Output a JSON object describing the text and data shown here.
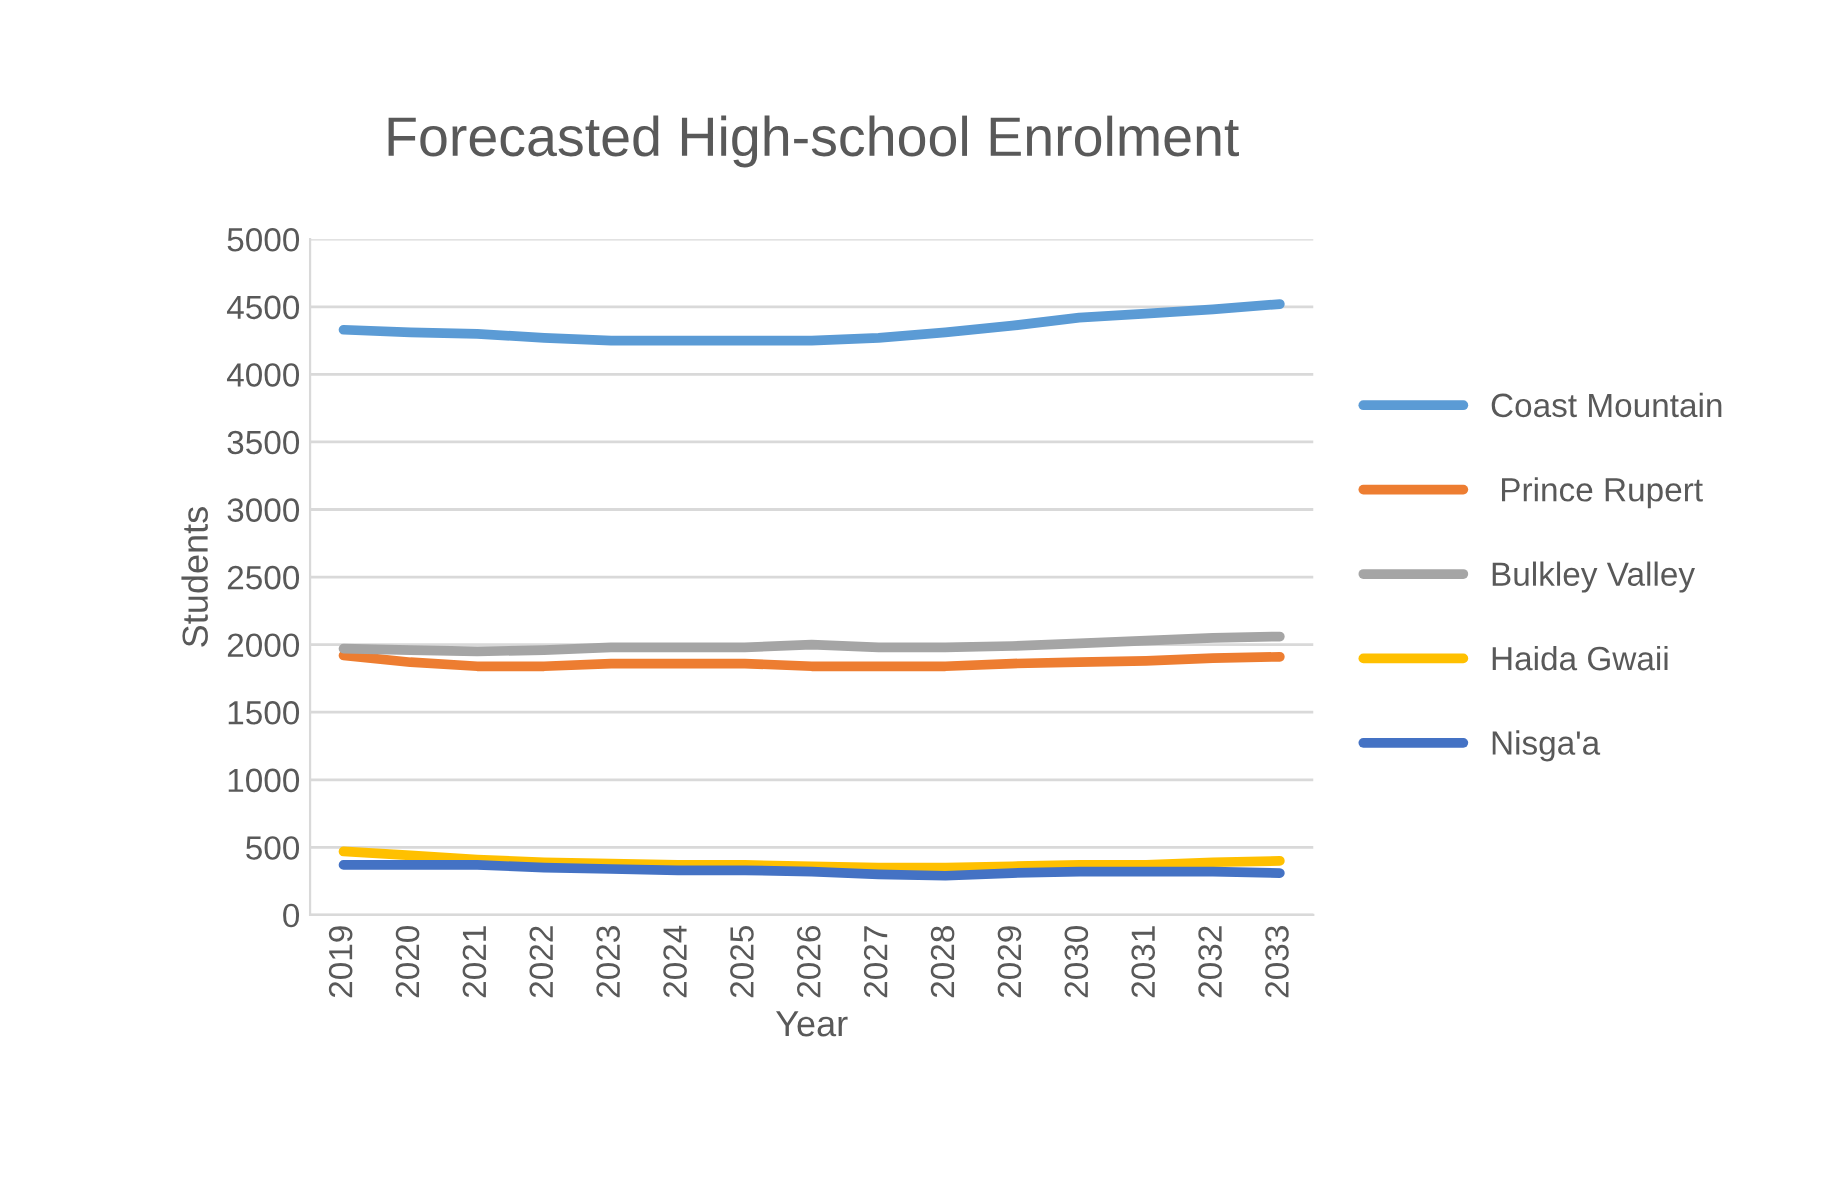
{
  "chart_data": {
    "type": "line",
    "title": "Forecasted High-school Enrolment",
    "xlabel": "Year",
    "ylabel": "Students",
    "categories": [
      "2019",
      "2020",
      "2021",
      "2022",
      "2023",
      "2024",
      "2025",
      "2026",
      "2027",
      "2028",
      "2029",
      "2030",
      "2031",
      "2032",
      "2033"
    ],
    "series": [
      {
        "name": "Coast Mountain",
        "color": "#5b9bd5",
        "values": [
          4330,
          4310,
          4300,
          4270,
          4250,
          4250,
          4250,
          4250,
          4270,
          4310,
          4360,
          4420,
          4450,
          4480,
          4520
        ]
      },
      {
        "name": " Prince Rupert",
        "color": "#ed7d31",
        "values": [
          1920,
          1870,
          1840,
          1840,
          1860,
          1860,
          1860,
          1840,
          1840,
          1840,
          1860,
          1870,
          1880,
          1900,
          1910
        ]
      },
      {
        "name": "Bulkley Valley",
        "color": "#a5a5a5",
        "values": [
          1970,
          1960,
          1950,
          1960,
          1980,
          1980,
          1980,
          2000,
          1980,
          1980,
          1990,
          2010,
          2030,
          2050,
          2060
        ]
      },
      {
        "name": "Haida Gwaii",
        "color": "#ffc000",
        "values": [
          470,
          440,
          410,
          390,
          380,
          370,
          370,
          360,
          350,
          350,
          360,
          370,
          370,
          390,
          400
        ]
      },
      {
        "name": "Nisga'a",
        "color": "#4472c4",
        "values": [
          370,
          370,
          370,
          350,
          340,
          330,
          330,
          320,
          300,
          290,
          310,
          320,
          320,
          320,
          310
        ]
      }
    ],
    "ylim": [
      0,
      5000
    ],
    "yticks": [
      0,
      500,
      1000,
      1500,
      2000,
      2500,
      3000,
      3500,
      4000,
      4500,
      5000
    ],
    "grid": "y",
    "legend": "right",
    "marker": "none",
    "line_style": "solid"
  }
}
